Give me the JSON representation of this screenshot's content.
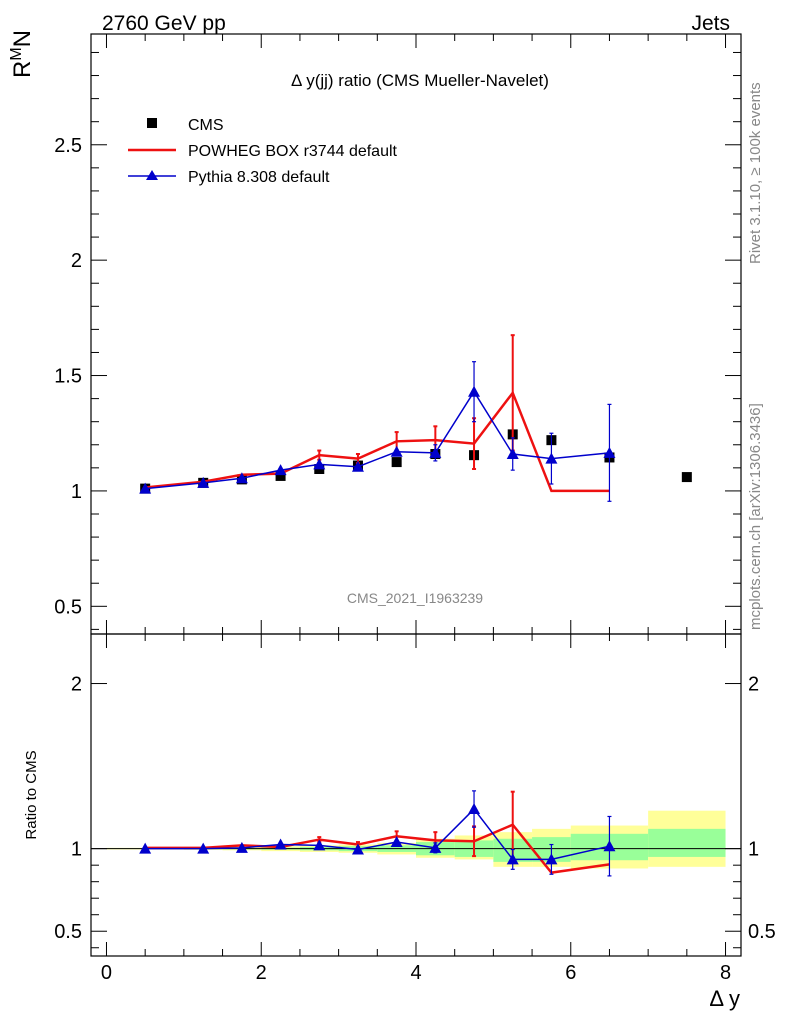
{
  "header": {
    "left": "2760 GeV pp",
    "right": "Jets"
  },
  "side_labels": {
    "top": "Rivet 3.1.10, ≥ 100k events",
    "bottom": "mcplots.cern.ch [arXiv:1306.3436]"
  },
  "watermark": "CMS_2021_I1963239",
  "chart_data": {
    "type": "line",
    "title": "Δ y(jj) ratio (CMS Mueller-Navelet)",
    "ylabel_main": "R^M_N",
    "ylabel_ratio": "Ratio to CMS",
    "xlabel": "Δ y",
    "xlim": [
      -0.2,
      8.2
    ],
    "ylim_main": [
      0.38,
      2.98
    ],
    "ylim_ratio": [
      0.35,
      2.3
    ],
    "x_ticks": [
      "0",
      "2",
      "4",
      "6",
      "8"
    ],
    "y_ticks_main": [
      "0.5",
      "1",
      "1.5",
      "2",
      "2.5"
    ],
    "y_ticks_ratio": [
      "0.5",
      "1",
      "2"
    ],
    "legend": {
      "position": "top-left",
      "entries": [
        "CMS",
        "POWHEG BOX r3744 default",
        "Pythia 8.308 default"
      ]
    },
    "colors": {
      "cms": "#000000",
      "powheg": "#ee1111",
      "pythia": "#0000cc",
      "band_inner": "#99ff99",
      "band_outer": "#ffff99"
    },
    "series": [
      {
        "name": "CMS",
        "x": [
          0.5,
          1.25,
          1.75,
          2.25,
          2.75,
          3.25,
          3.75,
          4.25,
          4.75,
          5.25,
          5.75,
          6.5,
          7.5
        ],
        "y": [
          1.01,
          1.035,
          1.05,
          1.065,
          1.095,
          1.11,
          1.125,
          1.16,
          1.155,
          1.245,
          1.22,
          1.145,
          1.06
        ]
      },
      {
        "name": "POWHEG BOX r3744 default",
        "x": [
          0.5,
          1.25,
          1.75,
          2.25,
          2.75,
          3.25,
          3.75,
          4.25,
          4.75,
          5.25,
          5.75,
          6.5
        ],
        "y": [
          1.015,
          1.04,
          1.07,
          1.075,
          1.155,
          1.14,
          1.215,
          1.22,
          1.205,
          1.425,
          1.0,
          1.0
        ],
        "yerr": [
          0,
          0,
          0,
          0,
          0.02,
          0.02,
          0.04,
          0.06,
          0.11,
          0.25,
          0,
          0
        ]
      },
      {
        "name": "Pythia 8.308 default",
        "x": [
          0.5,
          1.25,
          1.75,
          2.25,
          2.75,
          3.25,
          3.75,
          4.25,
          4.75,
          5.25,
          5.75,
          6.5
        ],
        "y": [
          1.01,
          1.035,
          1.055,
          1.09,
          1.115,
          1.105,
          1.17,
          1.165,
          1.43,
          1.16,
          1.14,
          1.165
        ],
        "yerr": [
          0,
          0,
          0,
          0,
          0,
          0,
          0,
          0.035,
          0.13,
          0.07,
          0.11,
          0.21
        ]
      }
    ],
    "ratio": {
      "edges": [
        0,
        1,
        1.5,
        2,
        2.5,
        3,
        3.5,
        4,
        4.5,
        5,
        5.5,
        6,
        7,
        8
      ],
      "band_inner": [
        [
          0.998,
          1.002
        ],
        [
          0.997,
          1.003
        ],
        [
          0.996,
          1.004
        ],
        [
          0.994,
          1.006
        ],
        [
          0.99,
          1.01
        ],
        [
          0.985,
          1.015
        ],
        [
          0.98,
          1.02
        ],
        [
          0.96,
          1.04
        ],
        [
          0.95,
          1.05
        ],
        [
          0.92,
          1.06
        ],
        [
          0.92,
          1.07
        ],
        [
          0.93,
          1.09
        ],
        [
          0.95,
          1.12
        ]
      ],
      "band_outer": [
        [
          0.995,
          1.005
        ],
        [
          0.993,
          1.007
        ],
        [
          0.99,
          1.01
        ],
        [
          0.985,
          1.015
        ],
        [
          0.98,
          1.02
        ],
        [
          0.975,
          1.025
        ],
        [
          0.965,
          1.035
        ],
        [
          0.945,
          1.06
        ],
        [
          0.935,
          1.08
        ],
        [
          0.89,
          1.1
        ],
        [
          0.89,
          1.12
        ],
        [
          0.88,
          1.14
        ],
        [
          0.89,
          1.23
        ]
      ],
      "powheg": {
        "x": [
          0.5,
          1.25,
          1.75,
          2.25,
          2.75,
          3.25,
          3.75,
          4.25,
          4.75,
          5.25,
          5.75,
          6.5
        ],
        "y": [
          1.005,
          1.005,
          1.02,
          1.01,
          1.055,
          1.025,
          1.075,
          1.05,
          1.045,
          1.145,
          0.855,
          0.905
        ],
        "yerr": [
          0,
          0,
          0,
          0,
          0.015,
          0.015,
          0.03,
          0.05,
          0.09,
          0.2,
          0,
          0
        ]
      },
      "pythia": {
        "x": [
          0.5,
          1.25,
          1.75,
          2.25,
          2.75,
          3.25,
          3.75,
          4.25,
          4.75,
          5.25,
          5.75,
          6.5
        ],
        "y": [
          1.0,
          1.0,
          1.005,
          1.025,
          1.02,
          0.995,
          1.04,
          1.005,
          1.24,
          0.935,
          0.935,
          1.015
        ],
        "yerr": [
          0,
          0,
          0,
          0,
          0,
          0,
          0,
          0.03,
          0.11,
          0.06,
          0.09,
          0.18
        ]
      }
    }
  }
}
